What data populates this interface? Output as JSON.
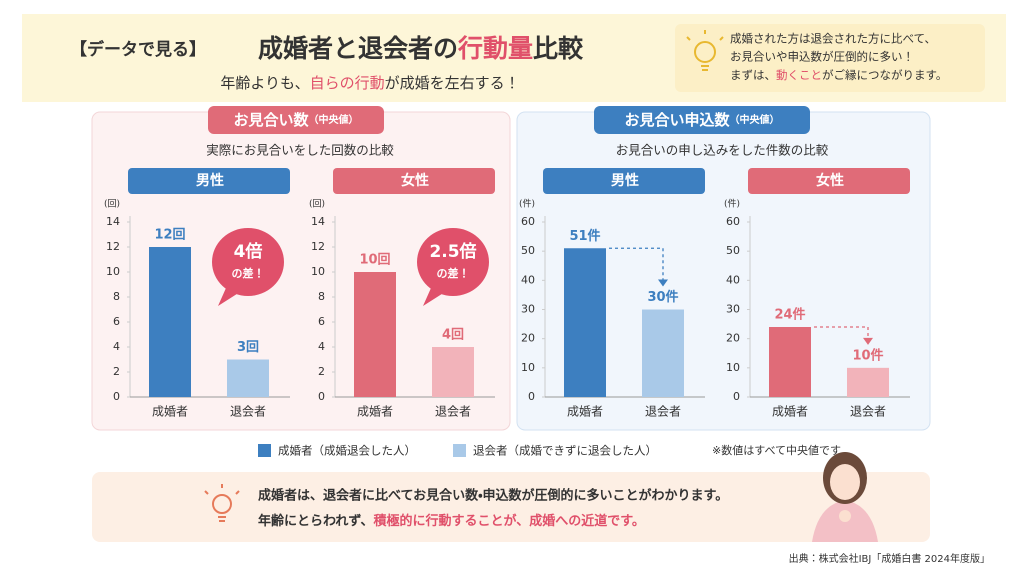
{
  "header": {
    "badge": "【データで見る】",
    "title": [
      "成婚者と退会者の",
      "行動量",
      "比較"
    ],
    "subtitle": [
      "年齢よりも、",
      "自らの行動",
      "が成婚を左右する！"
    ]
  },
  "note": {
    "lines": [
      "成婚された方は退会された方に比べて、",
      "お見合いや申込数が圧倒的に多い！"
    ],
    "last": [
      "まずは、",
      "動くこと",
      "がご縁につながります。"
    ]
  },
  "panels": [
    {
      "title": "お見合い数",
      "qualifier": "（中央値）",
      "subtitle": "実際にお見合いをした回数の比較"
    },
    {
      "title": "お見合い申込数",
      "qualifier": "（中央値）",
      "subtitle": "お見合いの申し込みをした件数の比較"
    }
  ],
  "chart_data": [
    {
      "type": "bar",
      "group": "男性",
      "y_unit": "(回)",
      "categories": [
        "成婚者",
        "退会者"
      ],
      "values": [
        12,
        3
      ],
      "value_labels": [
        "12回",
        "3回"
      ],
      "colors": [
        "#3d7fc0",
        "#a9c9e8"
      ],
      "ylim": [
        0,
        14
      ],
      "yticks": [
        0,
        2,
        4,
        6,
        8,
        10,
        12,
        14
      ],
      "annotation": [
        "4倍",
        "の差！"
      ]
    },
    {
      "type": "bar",
      "group": "女性",
      "y_unit": "(回)",
      "categories": [
        "成婚者",
        "退会者"
      ],
      "values": [
        10,
        4
      ],
      "value_labels": [
        "10回",
        "4回"
      ],
      "colors": [
        "#e06b78",
        "#f2b3ba"
      ],
      "ylim": [
        0,
        14
      ],
      "yticks": [
        0,
        2,
        4,
        6,
        8,
        10,
        12,
        14
      ],
      "annotation": [
        "2.5倍",
        "の差！"
      ]
    },
    {
      "type": "bar",
      "group": "男性",
      "y_unit": "(件)",
      "categories": [
        "成婚者",
        "退会者"
      ],
      "values": [
        51,
        30
      ],
      "value_labels": [
        "51件",
        "30件"
      ],
      "colors": [
        "#3d7fc0",
        "#a9c9e8"
      ],
      "ylim": [
        0,
        60
      ],
      "yticks": [
        0,
        10,
        20,
        30,
        40,
        50,
        60
      ]
    },
    {
      "type": "bar",
      "group": "女性",
      "y_unit": "(件)",
      "categories": [
        "成婚者",
        "退会者"
      ],
      "values": [
        24,
        10
      ],
      "value_labels": [
        "24件",
        "10件"
      ],
      "colors": [
        "#e06b78",
        "#f2b3ba"
      ],
      "ylim": [
        0,
        60
      ],
      "yticks": [
        0,
        10,
        20,
        30,
        40,
        50,
        60
      ]
    }
  ],
  "legend": [
    {
      "label": "成婚者（成婚退会した人）",
      "color": "#3d7fc0"
    },
    {
      "label": "退会者（成婚できずに退会した人）",
      "color": "#a9c9e8"
    }
  ],
  "legend_note": "※数値はすべて中央値です",
  "summary": {
    "line1": "成婚者は、退会者に比べてお見合い数・申込数が圧倒的に多いことがわかります。",
    "line2": [
      "年齢にとらわれず、",
      "積極的に行動することが、成婚への近道です。"
    ]
  },
  "source": "出典：株式会社IBJ「成婚白書 2024年度版」"
}
